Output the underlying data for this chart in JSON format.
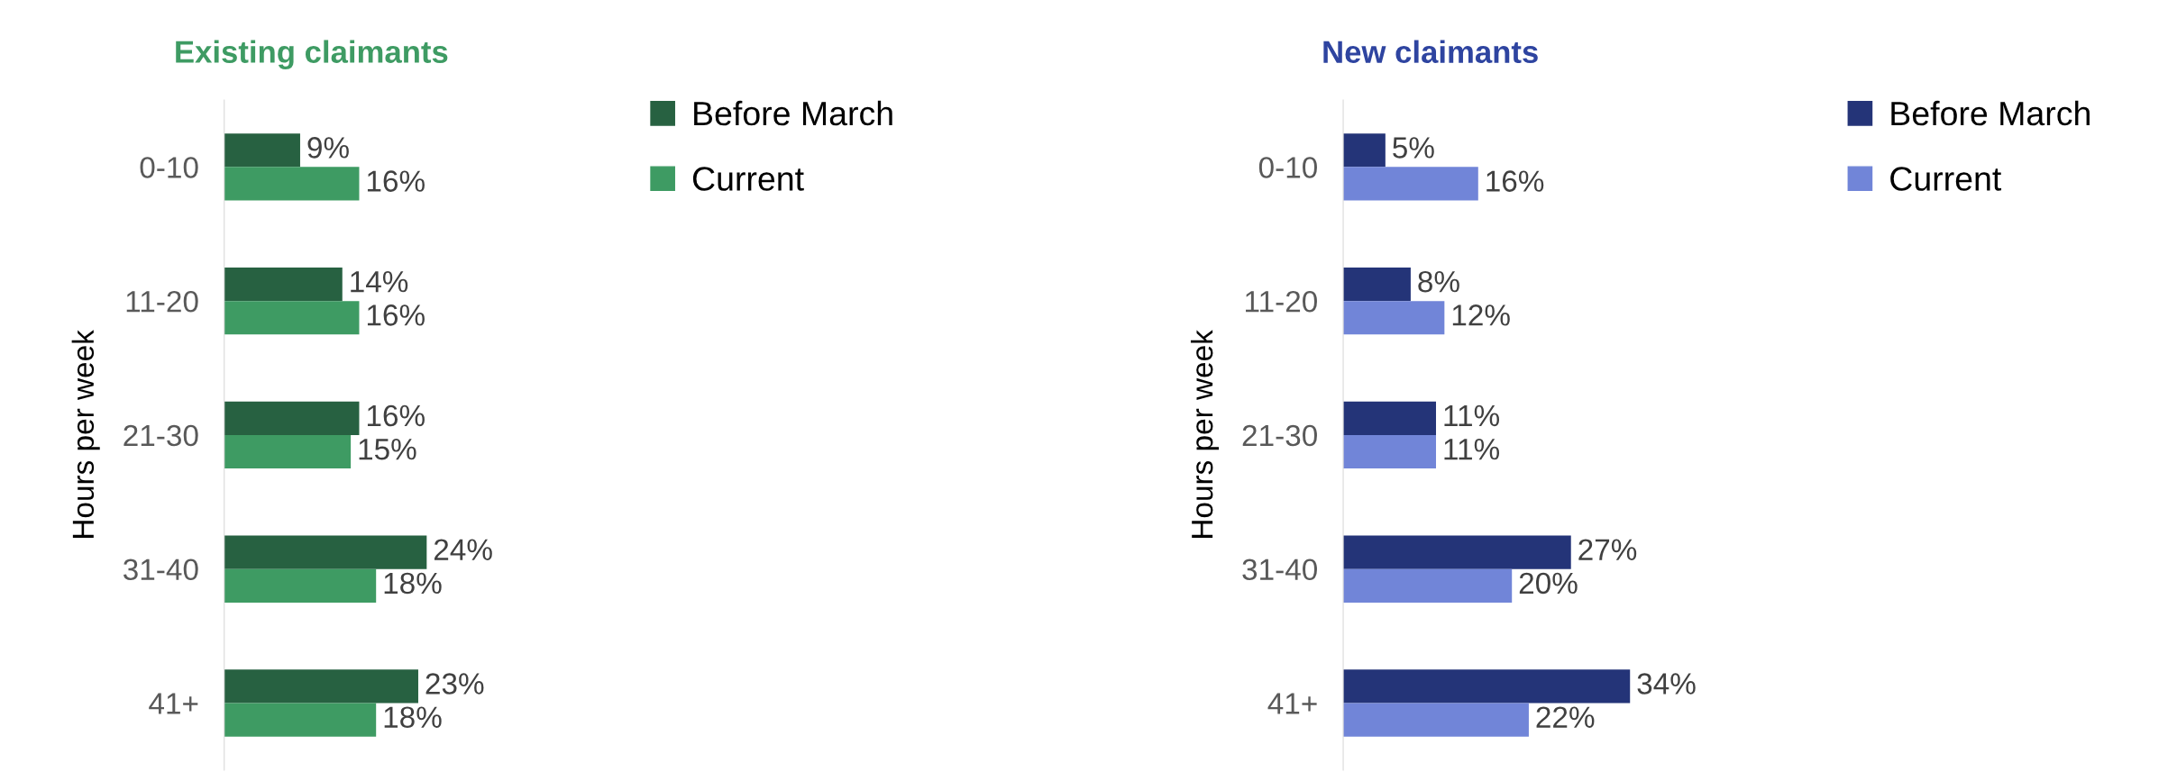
{
  "chart_data": [
    {
      "type": "bar",
      "orientation": "horizontal",
      "title": "Existing claimants",
      "ylabel": "Hours per week",
      "categories": [
        "0-10",
        "11-20",
        "21-30",
        "31-40",
        "41+"
      ],
      "legend": "top right",
      "grid": false,
      "tick_labels": "y",
      "series": [
        {
          "name": "Before March",
          "color": "#276141",
          "values": [
            9,
            14,
            16,
            24,
            23
          ],
          "value_labels": [
            "9%",
            "14%",
            "16%",
            "24%",
            "23%"
          ]
        },
        {
          "name": "Current",
          "color": "#3e9b63",
          "values": [
            16,
            16,
            15,
            18,
            18
          ],
          "value_labels": [
            "16%",
            "16%",
            "15%",
            "18%",
            "18%"
          ]
        }
      ]
    },
    {
      "type": "bar",
      "orientation": "horizontal",
      "title": "New claimants",
      "ylabel": "Hours per week",
      "categories": [
        "0-10",
        "11-20",
        "21-30",
        "31-40",
        "41+"
      ],
      "legend": "top right",
      "grid": false,
      "tick_labels": "y",
      "series": [
        {
          "name": "Before March",
          "color": "#243478",
          "values": [
            5,
            8,
            11,
            27,
            34
          ],
          "value_labels": [
            "5%",
            "8%",
            "11%",
            "27%",
            "34%"
          ]
        },
        {
          "name": "Current",
          "color": "#7185d8",
          "values": [
            16,
            12,
            11,
            20,
            22
          ],
          "value_labels": [
            "16%",
            "12%",
            "11%",
            "20%",
            "22%"
          ]
        }
      ]
    }
  ]
}
